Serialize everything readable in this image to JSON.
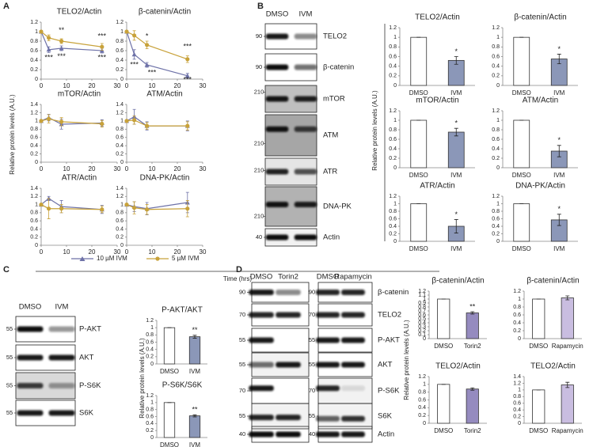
{
  "panel_labels": [
    "A",
    "B",
    "C",
    "D"
  ],
  "y_label": "Relative protein levels (A.U.)",
  "x_label": "Time (hrs)",
  "chart_data": [
    {
      "type": "line",
      "title": "TELO2/Actin",
      "xlim": [
        0,
        30
      ],
      "xticks": [
        0,
        10,
        20,
        30
      ],
      "ylim": [
        0,
        1.2
      ],
      "yticks": [
        0,
        0.2,
        0.4,
        0.6,
        0.8,
        1,
        1.2
      ],
      "x": [
        0,
        3,
        8,
        24
      ],
      "series": [
        {
          "name": "10 µM IVM",
          "color": "#6e72a8",
          "marker": "triangle",
          "values": [
            1,
            0.62,
            0.65,
            0.6
          ],
          "errors": [
            0.02,
            0.06,
            0.05,
            0.05
          ]
        },
        {
          "name": "5 µM IVM",
          "color": "#c8a23a",
          "marker": "circle",
          "values": [
            1,
            0.87,
            0.8,
            0.68
          ],
          "errors": [
            0.02,
            0.06,
            0.05,
            0.07
          ]
        }
      ],
      "annotations": [
        "**",
        "***",
        "***",
        "***",
        "***"
      ]
    },
    {
      "type": "line",
      "title": "β-catenin/Actin",
      "xlim": [
        0,
        30
      ],
      "xticks": [
        0,
        10,
        20,
        30
      ],
      "ylim": [
        0,
        1.2
      ],
      "yticks": [
        0,
        0.2,
        0.4,
        0.6,
        0.8,
        1,
        1.2
      ],
      "x": [
        0,
        3,
        8,
        24
      ],
      "series": [
        {
          "color": "#6e72a8",
          "marker": "triangle",
          "values": [
            1,
            0.52,
            0.3,
            0.07
          ],
          "errors": [
            0.02,
            0.1,
            0.05,
            0.05
          ]
        },
        {
          "color": "#c8a23a",
          "marker": "circle",
          "values": [
            1,
            0.92,
            0.72,
            0.42
          ],
          "errors": [
            0.02,
            0.1,
            0.08,
            0.07
          ]
        }
      ],
      "annotations": [
        "*",
        "***",
        "***",
        "***",
        "***"
      ]
    },
    {
      "type": "line",
      "title": "mTOR/Actin",
      "xlim": [
        0,
        30
      ],
      "xticks": [
        0,
        10,
        20,
        30
      ],
      "ylim": [
        0,
        1.4
      ],
      "yticks": [
        0,
        0.2,
        0.4,
        0.6,
        0.8,
        1,
        1.2,
        1.4
      ],
      "x": [
        0,
        3,
        8,
        24
      ],
      "series": [
        {
          "color": "#6e72a8",
          "marker": "triangle",
          "values": [
            1,
            1.08,
            0.92,
            0.95
          ],
          "errors": [
            0.02,
            0.08,
            0.12,
            0.08
          ]
        },
        {
          "color": "#c8a23a",
          "marker": "circle",
          "values": [
            1,
            1.05,
            0.98,
            0.93
          ],
          "errors": [
            0.02,
            0.1,
            0.1,
            0.08
          ]
        }
      ],
      "annotations": []
    },
    {
      "type": "line",
      "title": "ATM/Actin",
      "xlim": [
        0,
        30
      ],
      "xticks": [
        0,
        10,
        20,
        30
      ],
      "ylim": [
        0,
        1.4
      ],
      "yticks": [
        0,
        0.2,
        0.4,
        0.6,
        0.8,
        1,
        1.2,
        1.4
      ],
      "x": [
        0,
        3,
        8,
        24
      ],
      "series": [
        {
          "color": "#6e72a8",
          "marker": "triangle",
          "values": [
            1,
            1.1,
            0.88,
            0.88
          ],
          "errors": [
            0.02,
            0.18,
            0.1,
            0.12
          ]
        },
        {
          "color": "#c8a23a",
          "marker": "circle",
          "values": [
            1,
            1.02,
            0.88,
            0.88
          ],
          "errors": [
            0.02,
            0.1,
            0.08,
            0.1
          ]
        }
      ],
      "annotations": []
    },
    {
      "type": "line",
      "title": "ATR/Actin",
      "xlim": [
        0,
        30
      ],
      "xticks": [
        0,
        10,
        20,
        30
      ],
      "ylim": [
        0,
        1.4
      ],
      "yticks": [
        0,
        0.2,
        0.4,
        0.6,
        0.8,
        1,
        1.2,
        1.4
      ],
      "x": [
        0,
        3,
        8,
        24
      ],
      "series": [
        {
          "color": "#6e72a8",
          "marker": "triangle",
          "values": [
            1,
            1.15,
            0.95,
            0.88
          ],
          "errors": [
            0.02,
            0.05,
            0.15,
            0.1
          ]
        },
        {
          "color": "#c8a23a",
          "marker": "circle",
          "values": [
            1,
            0.9,
            0.9,
            0.88
          ],
          "errors": [
            0.02,
            0.25,
            0.1,
            0.08
          ]
        }
      ],
      "annotations": []
    },
    {
      "type": "line",
      "title": "DNA-PK/Actin",
      "xlim": [
        0,
        30
      ],
      "xticks": [
        0,
        10,
        20,
        30
      ],
      "ylim": [
        0,
        1.4
      ],
      "yticks": [
        0,
        0.2,
        0.4,
        0.6,
        0.8,
        1,
        1.2,
        1.4
      ],
      "x": [
        0,
        3,
        8,
        24
      ],
      "series": [
        {
          "color": "#6e72a8",
          "marker": "triangle",
          "values": [
            1,
            0.95,
            0.9,
            1.05
          ],
          "errors": [
            0.02,
            0.12,
            0.15,
            0.25
          ]
        },
        {
          "color": "#c8a23a",
          "marker": "circle",
          "values": [
            1,
            0.92,
            0.88,
            0.9
          ],
          "errors": [
            0.02,
            0.15,
            0.12,
            0.2
          ]
        }
      ],
      "annotations": []
    },
    {
      "type": "bar",
      "title": "TELO2/Actin",
      "categories": [
        "DMSO",
        "IVM"
      ],
      "values": [
        1,
        0.52
      ],
      "errors": [
        0,
        0.08
      ],
      "colors": [
        "#ffffff",
        "#8b97b8"
      ],
      "ylim": [
        0,
        1.2
      ],
      "yticks": [
        0,
        0.2,
        0.4,
        0.6,
        0.8,
        1,
        1.2
      ],
      "annotations": [
        "*"
      ]
    },
    {
      "type": "bar",
      "title": "β-catenin/Actin",
      "categories": [
        "DMSO",
        "IVM"
      ],
      "values": [
        1,
        0.55
      ],
      "errors": [
        0,
        0.1
      ],
      "colors": [
        "#ffffff",
        "#8b97b8"
      ],
      "ylim": [
        0,
        1.2
      ],
      "yticks": [
        0,
        0.2,
        0.4,
        0.6,
        0.8,
        1,
        1.2
      ],
      "annotations": [
        "*"
      ]
    },
    {
      "type": "bar",
      "title": "mTOR/Actin",
      "categories": [
        "DMSO",
        "IVM"
      ],
      "values": [
        1,
        0.75
      ],
      "errors": [
        0,
        0.08
      ],
      "colors": [
        "#ffffff",
        "#8b97b8"
      ],
      "ylim": [
        0,
        1.2
      ],
      "yticks": [
        0,
        0.2,
        0.4,
        0.6,
        0.8,
        1,
        1.2
      ],
      "annotations": [
        "*"
      ]
    },
    {
      "type": "bar",
      "title": "ATM/Actin",
      "categories": [
        "DMSO",
        "IVM"
      ],
      "values": [
        1,
        0.35
      ],
      "errors": [
        0,
        0.12
      ],
      "colors": [
        "#ffffff",
        "#8b97b8"
      ],
      "ylim": [
        0,
        1.2
      ],
      "yticks": [
        0,
        0.2,
        0.4,
        0.6,
        0.8,
        1,
        1.2
      ],
      "annotations": [
        "*"
      ]
    },
    {
      "type": "bar",
      "title": "ATR/Actin",
      "categories": [
        "DMSO",
        "IVM"
      ],
      "values": [
        1,
        0.4
      ],
      "errors": [
        0,
        0.18
      ],
      "colors": [
        "#ffffff",
        "#8b97b8"
      ],
      "ylim": [
        0,
        1.2
      ],
      "yticks": [
        0,
        0.2,
        0.4,
        0.6,
        0.8,
        1,
        1.2
      ],
      "annotations": [
        "*"
      ]
    },
    {
      "type": "bar",
      "title": "DNA-PK/Actin",
      "categories": [
        "DMSO",
        "IVM"
      ],
      "values": [
        1,
        0.57
      ],
      "errors": [
        0,
        0.15
      ],
      "colors": [
        "#ffffff",
        "#8b97b8"
      ],
      "ylim": [
        0,
        1.2
      ],
      "yticks": [
        0,
        0.2,
        0.4,
        0.6,
        0.8,
        1,
        1.2
      ],
      "annotations": [
        "*"
      ]
    },
    {
      "type": "bar",
      "title": "P-AKT/AKT",
      "categories": [
        "DMSO",
        "IVM"
      ],
      "values": [
        1,
        0.75
      ],
      "errors": [
        0,
        0.04
      ],
      "colors": [
        "#ffffff",
        "#8b97b8"
      ],
      "ylim": [
        0,
        1.2
      ],
      "yticks": [
        0,
        0.2,
        0.4,
        0.6,
        0.8,
        1,
        1.2
      ],
      "annotations": [
        "**"
      ]
    },
    {
      "type": "bar",
      "title": "P-S6K/S6K",
      "categories": [
        "DMSO",
        "IVM"
      ],
      "values": [
        1,
        0.62
      ],
      "errors": [
        0,
        0.03
      ],
      "colors": [
        "#ffffff",
        "#8b97b8"
      ],
      "ylim": [
        0,
        1.2
      ],
      "yticks": [
        0,
        0.2,
        0.4,
        0.6,
        0.8,
        1,
        1.2
      ],
      "annotations": [
        "**"
      ]
    },
    {
      "type": "bar",
      "title": "β-catenin/Actin",
      "categories": [
        "DMSO",
        "Torin2"
      ],
      "values": [
        1,
        0.65
      ],
      "errors": [
        0,
        0.03
      ],
      "colors": [
        "#ffffff",
        "#958bbf"
      ],
      "ylim": [
        0,
        1.2
      ],
      "yticks": [
        0,
        0.1,
        0.2,
        0.3,
        0.4,
        0.5,
        0.6,
        0.7,
        0.8,
        0.9,
        1,
        1.1,
        1.2
      ],
      "annotations": [
        "**"
      ]
    },
    {
      "type": "bar",
      "title": "β-catenin/Actin",
      "categories": [
        "DMSO",
        "Rapamycin"
      ],
      "values": [
        1,
        1.03
      ],
      "errors": [
        0,
        0.05
      ],
      "colors": [
        "#ffffff",
        "#c9bde0"
      ],
      "ylim": [
        0,
        1.2
      ],
      "yticks": [
        0,
        0.2,
        0.4,
        0.6,
        0.8,
        1,
        1.2
      ],
      "annotations": []
    },
    {
      "type": "bar",
      "title": "TELO2/Actin",
      "categories": [
        "DMSO",
        "Torin2"
      ],
      "values": [
        1,
        0.88
      ],
      "errors": [
        0,
        0.03
      ],
      "colors": [
        "#ffffff",
        "#958bbf"
      ],
      "ylim": [
        0,
        1.2
      ],
      "yticks": [
        0,
        0.2,
        0.4,
        0.6,
        0.8,
        1,
        1.2
      ],
      "annotations": []
    },
    {
      "type": "bar",
      "title": "TELO2/Actin",
      "categories": [
        "DMSO",
        "Rapamycin"
      ],
      "values": [
        1,
        1.15
      ],
      "errors": [
        0,
        0.08
      ],
      "colors": [
        "#ffffff",
        "#c9bde0"
      ],
      "ylim": [
        0,
        1.4
      ],
      "yticks": [
        0,
        0.2,
        0.4,
        0.6,
        0.8,
        1,
        1.2,
        1.4
      ],
      "annotations": []
    }
  ],
  "blots": [
    {
      "lanes": [
        "DMSO",
        "IVM"
      ],
      "rows": [
        {
          "label": "TELO2",
          "markers": [
            90
          ]
        },
        {
          "label": "β-catenin",
          "markers": [
            90
          ]
        },
        {
          "label": "mTOR",
          "markers": [
            210
          ]
        },
        {
          "label": "ATM",
          "markers": [
            210
          ]
        },
        {
          "label": "ATR",
          "markers": [
            210
          ]
        },
        {
          "label": "DNA-PK",
          "markers": [
            210
          ]
        },
        {
          "label": "Actin",
          "markers": [
            40
          ]
        }
      ]
    },
    {
      "lanes": [
        "DMSO",
        "IVM"
      ],
      "rows": [
        {
          "label": "P-AKT",
          "markers": [
            55
          ]
        },
        {
          "label": "AKT",
          "markers": [
            55
          ]
        },
        {
          "label": "P-S6K",
          "markers": [
            55
          ]
        },
        {
          "label": "S6K",
          "markers": [
            55
          ]
        }
      ]
    },
    {
      "lanes": [
        "DMSO",
        "Torin2"
      ],
      "rows": [
        {
          "markers": [
            90
          ]
        },
        {
          "markers": [
            70
          ]
        },
        {
          "markers": [
            55
          ]
        },
        {
          "markers": [
            55
          ]
        },
        {
          "markers": [
            70
          ]
        },
        {
          "markers": [
            55
          ]
        },
        {
          "markers": [
            40
          ]
        }
      ]
    },
    {
      "lanes": [
        "DMSO",
        "Rapamycin"
      ],
      "rows": [
        {
          "label": "β-catenin",
          "markers": [
            90
          ]
        },
        {
          "label": "TELO2",
          "markers": [
            70
          ]
        },
        {
          "label": "P-AKT",
          "markers": [
            55
          ]
        },
        {
          "label": "AKT",
          "markers": [
            55
          ]
        },
        {
          "label": "P-S6K",
          "markers": [
            70
          ]
        },
        {
          "label": "S6K",
          "markers": [
            55
          ]
        },
        {
          "label": "Actin",
          "markers": [
            40
          ]
        }
      ]
    }
  ]
}
